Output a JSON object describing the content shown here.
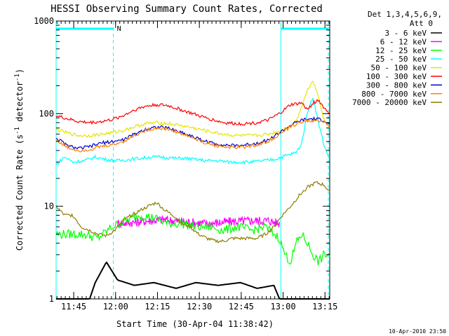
{
  "chart_data": {
    "type": "line",
    "title": "HESSI Observing Summary Count Rates, Corrected",
    "xlabel": "Start Time (30-Apr-04 11:38:42)",
    "ylabel_main": "Corrected Count Rate (s",
    "ylabel_sup1": "-1",
    "ylabel_mid": " detector",
    "ylabel_sup2": "-1",
    "ylabel_end": ")",
    "yscale": "log",
    "ylim": [
      1,
      1000
    ],
    "y_ticks": [
      {
        "value": 1,
        "label": "1"
      },
      {
        "value": 10,
        "label": "10"
      },
      {
        "value": 100,
        "label": "100"
      },
      {
        "value": 1000,
        "label": "1000"
      }
    ],
    "x_range_minutes": [
      0,
      98
    ],
    "x_ticks": [
      {
        "minute": 6.3,
        "label": "11:45"
      },
      {
        "minute": 21.3,
        "label": "12:00"
      },
      {
        "minute": 36.3,
        "label": "12:15"
      },
      {
        "minute": 51.3,
        "label": "12:30"
      },
      {
        "minute": 66.3,
        "label": "12:45"
      },
      {
        "minute": 81.3,
        "label": "13:00"
      },
      {
        "minute": 96.3,
        "label": "13:15"
      }
    ],
    "legend_header_1": "Det 1,3,4,5,6,9,",
    "legend_header_2": "Att 0",
    "legend_placement": "right",
    "series": [
      {
        "name": "3 - 6 keV",
        "color": "#000000",
        "x": [
          0,
          12,
          14,
          18,
          22,
          28,
          35,
          43,
          50,
          58,
          66,
          72,
          78,
          80,
          84,
          88,
          92,
          96,
          98
        ],
        "y": [
          1,
          1,
          1.5,
          2.5,
          1.6,
          1.4,
          1.5,
          1.3,
          1.5,
          1.4,
          1.5,
          1.3,
          1.4,
          1,
          1,
          1,
          1,
          1,
          1
        ]
      },
      {
        "name": "6 - 12 keV",
        "color": "#ff00ff",
        "x": [
          22,
          30,
          38,
          46,
          54,
          62,
          70,
          76,
          80
        ],
        "y": [
          6.5,
          6.8,
          7.2,
          6.8,
          6.5,
          6.8,
          7.0,
          7.0,
          6.5
        ]
      },
      {
        "name": "12 - 25 keV",
        "color": "#00ff00",
        "x": [
          0,
          5,
          10,
          15,
          20,
          25,
          30,
          35,
          40,
          45,
          50,
          55,
          60,
          65,
          70,
          75,
          80,
          82,
          84,
          86,
          88,
          90,
          92,
          94,
          96,
          98
        ],
        "y": [
          5,
          5,
          5,
          4.5,
          6,
          7,
          8,
          7.5,
          6.5,
          6.5,
          6,
          6,
          5.5,
          6,
          5.5,
          6,
          4.5,
          3,
          2.5,
          4,
          5,
          4,
          3,
          2.5,
          3,
          3
        ]
      },
      {
        "name": "25 - 50 keV",
        "color": "#00ffff",
        "x": [
          0,
          3,
          6,
          10,
          14,
          18,
          22,
          26,
          30,
          34,
          38,
          42,
          46,
          50,
          54,
          58,
          62,
          66,
          70,
          74,
          78,
          82,
          86,
          88,
          90,
          92,
          94,
          96,
          98
        ],
        "y": [
          28,
          34,
          30,
          31,
          34,
          32,
          31,
          32,
          33,
          34,
          34,
          33,
          33,
          32,
          31,
          31,
          30,
          30,
          30,
          31,
          32,
          35,
          38,
          48,
          105,
          150,
          80,
          45,
          32
        ]
      },
      {
        "name": "50 - 100 keV",
        "color": "#e6e600",
        "x": [
          0,
          4,
          8,
          12,
          16,
          20,
          24,
          28,
          32,
          36,
          40,
          44,
          48,
          52,
          56,
          60,
          64,
          68,
          72,
          76,
          80,
          84,
          86,
          88,
          90,
          92,
          94,
          96,
          98
        ],
        "y": [
          68,
          62,
          58,
          58,
          60,
          62,
          66,
          72,
          78,
          80,
          78,
          75,
          71,
          67,
          63,
          60,
          58,
          58,
          58,
          60,
          65,
          72,
          85,
          120,
          180,
          230,
          150,
          85,
          70
        ]
      },
      {
        "name": "100 - 300 keV",
        "color": "#ff0000",
        "x": [
          0,
          4,
          8,
          12,
          16,
          20,
          24,
          28,
          32,
          36,
          40,
          44,
          48,
          52,
          56,
          60,
          64,
          68,
          72,
          76,
          80,
          84,
          88,
          90,
          92,
          94,
          96,
          98
        ],
        "y": [
          95,
          88,
          82,
          80,
          82,
          86,
          95,
          110,
          120,
          125,
          122,
          112,
          102,
          93,
          86,
          80,
          78,
          78,
          80,
          85,
          100,
          125,
          130,
          110,
          130,
          140,
          115,
          100
        ]
      },
      {
        "name": "300 - 800 keV",
        "color": "#0000cc",
        "x": [
          0,
          4,
          8,
          12,
          16,
          20,
          24,
          28,
          32,
          36,
          40,
          44,
          48,
          52,
          56,
          60,
          64,
          68,
          72,
          76,
          80,
          84,
          88,
          92,
          96,
          98
        ],
        "y": [
          55,
          45,
          42,
          44,
          48,
          50,
          52,
          60,
          68,
          72,
          70,
          64,
          58,
          52,
          48,
          46,
          45,
          46,
          48,
          52,
          62,
          75,
          85,
          88,
          85,
          75
        ]
      },
      {
        "name": "800 - 7000 keV",
        "color": "#ff8000",
        "x": [
          0,
          4,
          8,
          12,
          16,
          20,
          24,
          28,
          32,
          36,
          40,
          44,
          48,
          52,
          56,
          60,
          64,
          68,
          72,
          76,
          80,
          84,
          88,
          92,
          96,
          98
        ],
        "y": [
          52,
          43,
          40,
          41,
          44,
          46,
          50,
          58,
          66,
          70,
          68,
          62,
          56,
          50,
          46,
          44,
          43,
          44,
          46,
          50,
          60,
          72,
          82,
          84,
          82,
          72
        ]
      },
      {
        "name": "7000 - 20000 keV",
        "color": "#8b7d00",
        "x": [
          0,
          3,
          6,
          9,
          12,
          15,
          18,
          21,
          24,
          27,
          30,
          33,
          36,
          39,
          42,
          45,
          48,
          51,
          54,
          57,
          60,
          63,
          66,
          69,
          72,
          75,
          78,
          81,
          84,
          87,
          90,
          93,
          96,
          98
        ],
        "y": [
          10,
          8,
          8,
          6,
          5.5,
          5,
          4.8,
          5.5,
          7,
          8,
          9,
          10,
          11,
          9,
          8,
          6.5,
          6,
          5,
          4.5,
          4.2,
          4.2,
          4.5,
          4.5,
          4.5,
          4.5,
          5,
          6,
          8,
          10,
          13,
          16,
          18,
          17,
          14
        ]
      }
    ],
    "attenuator_bar_label": "N",
    "attenuator_intervals": [
      [
        0,
        20.5
      ],
      [
        80.5,
        97.5
      ]
    ],
    "event_marker_minutes": [
      0,
      20.5,
      80.5,
      97.5
    ]
  },
  "footer_timestamp": "10-Apr-2010 23:50",
  "colors": {
    "background": "#ffffff",
    "axis": "#000000",
    "marker": "#00ffff"
  }
}
